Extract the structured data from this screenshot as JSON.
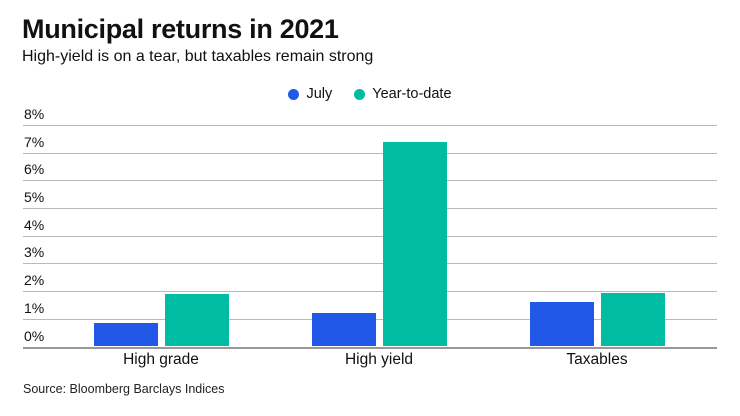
{
  "header": {
    "title": "Municipal returns in 2021",
    "subtitle": "High-yield is on a tear, but taxables remain strong"
  },
  "legend": [
    {
      "label": "July",
      "color": "#2158e8"
    },
    {
      "label": "Year-to-date",
      "color": "#00bda1"
    }
  ],
  "source": "Source: Bloomberg Barclays Indices",
  "colors": {
    "july_blue": "#2158e8",
    "ytd_teal": "#00bda1",
    "gridline": "#b9b9b9",
    "axis_line": "#999999",
    "text": "#111111"
  },
  "chart_data": {
    "type": "bar",
    "title": "Municipal returns in 2021",
    "subtitle": "High-yield is on a tear, but taxables remain strong",
    "categories": [
      "High grade",
      "High yield",
      "Taxables"
    ],
    "series": [
      {
        "name": "July",
        "color": "#2158e8",
        "values": [
          0.85,
          1.2,
          1.6
        ]
      },
      {
        "name": "Year-to-date",
        "color": "#00bda1",
        "values": [
          1.9,
          7.4,
          1.95
        ]
      }
    ],
    "xlabel": "",
    "ylabel": "",
    "ylim": [
      0,
      8
    ],
    "yticks": [
      "0%",
      "1%",
      "2%",
      "3%",
      "4%",
      "5%",
      "6%",
      "7%",
      "8%"
    ],
    "grid": true,
    "legend_position": "top-center",
    "source": "Source: Bloomberg Barclays Indices"
  }
}
